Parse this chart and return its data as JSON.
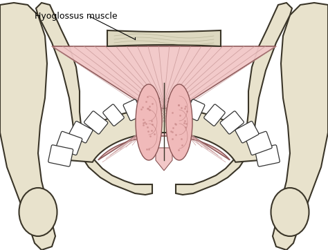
{
  "bg_color": "#ffffff",
  "bone_fill": "#e8e2cc",
  "bone_edge": "#3a3528",
  "bone_inner": "#d8d2bc",
  "muscle_fill": "#f2c8c8",
  "muscle_edge": "#8a5555",
  "muscle_line": "#c89898",
  "gland_fill": "#f0baba",
  "gland_edge": "#8a5555",
  "hyoid_fill": "#ddd8c0",
  "hyoid_edge": "#3a3528",
  "label_text": "Hyoglossus muscle",
  "figsize": [
    4.74,
    3.62
  ],
  "dpi": 100
}
